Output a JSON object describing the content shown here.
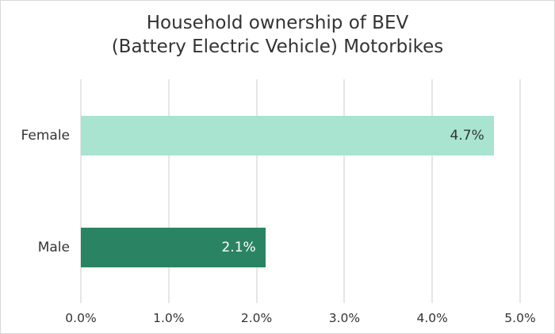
{
  "chart_data": {
    "type": "bar",
    "orientation": "horizontal",
    "title": "Household ownership of BEV (Battery Electric Vehicle) Motorbikes",
    "title_lines": [
      "Household ownership of BEV",
      "(Battery Electric Vehicle) Motorbikes"
    ],
    "categories": [
      "Female",
      "Male"
    ],
    "values": [
      4.7,
      2.1
    ],
    "value_labels": [
      "4.7%",
      "2.1%"
    ],
    "bar_colors": [
      "#a8e4d0",
      "#2a8464"
    ],
    "label_colors": [
      "#333333",
      "#ffffff"
    ],
    "xlabel": "",
    "ylabel": "",
    "xlim": [
      0,
      5
    ],
    "x_ticks": [
      0,
      1,
      2,
      3,
      4,
      5
    ],
    "x_tick_labels": [
      "0.0%",
      "1.0%",
      "2.0%",
      "3.0%",
      "4.0%",
      "5.0%"
    ],
    "grid": "vertical",
    "legend": "none"
  }
}
